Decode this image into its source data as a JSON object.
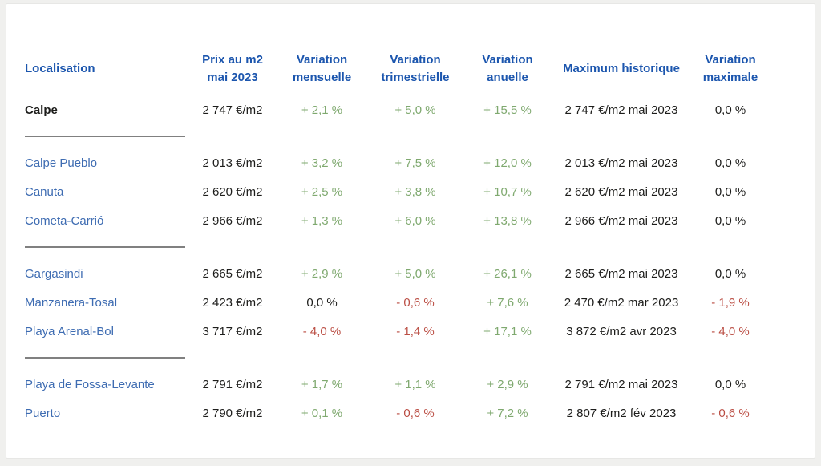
{
  "page": {
    "background": "#f0f0ee",
    "card_background": "#ffffff"
  },
  "colors": {
    "header_blue": "#1c56ae",
    "link_blue": "#3e6cb2",
    "positive_green": "#7fa96f",
    "negative_red": "#bb4f45",
    "neutral_text": "#1d1d1b",
    "divider_gray": "#808080"
  },
  "table": {
    "headers": [
      {
        "line1": "Localisation",
        "line2": ""
      },
      {
        "line1": "Prix au m2",
        "line2": "mai 2023"
      },
      {
        "line1": "Variation",
        "line2": "mensuelle"
      },
      {
        "line1": "Variation",
        "line2": "trimestrielle"
      },
      {
        "line1": "Variation",
        "line2": "anuelle"
      },
      {
        "line1": "Maximum historique",
        "line2": ""
      },
      {
        "line1": "Variation",
        "line2": "maximale"
      }
    ],
    "rows": [
      {
        "locality": "Calpe",
        "style": "bold",
        "price": "2 747 €/m2",
        "monthly": {
          "text": "+ 2,1 %",
          "trend": "positive"
        },
        "quarterly": {
          "text": "+ 5,0 %",
          "trend": "positive"
        },
        "yearly": {
          "text": "+ 15,5 %",
          "trend": "positive"
        },
        "max": "2 747 €/m2 mai 2023",
        "max_variation": {
          "text": "0,0 %",
          "trend": "neutral"
        },
        "divider_after": true
      },
      {
        "locality": "Calpe Pueblo",
        "style": "link",
        "price": "2 013 €/m2",
        "monthly": {
          "text": "+ 3,2 %",
          "trend": "positive"
        },
        "quarterly": {
          "text": "+ 7,5 %",
          "trend": "positive"
        },
        "yearly": {
          "text": "+ 12,0 %",
          "trend": "positive"
        },
        "max": "2 013 €/m2 mai 2023",
        "max_variation": {
          "text": "0,0 %",
          "trend": "neutral"
        },
        "divider_after": false
      },
      {
        "locality": "Canuta",
        "style": "link",
        "price": "2 620 €/m2",
        "monthly": {
          "text": "+ 2,5 %",
          "trend": "positive"
        },
        "quarterly": {
          "text": "+ 3,8 %",
          "trend": "positive"
        },
        "yearly": {
          "text": "+ 10,7 %",
          "trend": "positive"
        },
        "max": "2 620 €/m2 mai 2023",
        "max_variation": {
          "text": "0,0 %",
          "trend": "neutral"
        },
        "divider_after": false
      },
      {
        "locality": "Cometa-Carrió",
        "style": "link",
        "price": "2 966 €/m2",
        "monthly": {
          "text": "+ 1,3 %",
          "trend": "positive"
        },
        "quarterly": {
          "text": "+ 6,0 %",
          "trend": "positive"
        },
        "yearly": {
          "text": "+ 13,8 %",
          "trend": "positive"
        },
        "max": "2 966 €/m2 mai 2023",
        "max_variation": {
          "text": "0,0 %",
          "trend": "neutral"
        },
        "divider_after": true
      },
      {
        "locality": "Gargasindi",
        "style": "link",
        "price": "2 665 €/m2",
        "monthly": {
          "text": "+ 2,9 %",
          "trend": "positive"
        },
        "quarterly": {
          "text": "+ 5,0 %",
          "trend": "positive"
        },
        "yearly": {
          "text": "+ 26,1 %",
          "trend": "positive"
        },
        "max": "2 665 €/m2 mai 2023",
        "max_variation": {
          "text": "0,0 %",
          "trend": "neutral"
        },
        "divider_after": false
      },
      {
        "locality": "Manzanera-Tosal",
        "style": "link",
        "price": "2 423 €/m2",
        "monthly": {
          "text": "0,0 %",
          "trend": "neutral"
        },
        "quarterly": {
          "text": "- 0,6 %",
          "trend": "negative"
        },
        "yearly": {
          "text": "+ 7,6 %",
          "trend": "positive"
        },
        "max": "2 470 €/m2 mar 2023",
        "max_variation": {
          "text": "- 1,9 %",
          "trend": "negative"
        },
        "divider_after": false
      },
      {
        "locality": "Playa Arenal-Bol",
        "style": "link",
        "price": "3 717 €/m2",
        "monthly": {
          "text": "- 4,0 %",
          "trend": "negative"
        },
        "quarterly": {
          "text": "- 1,4 %",
          "trend": "negative"
        },
        "yearly": {
          "text": "+ 17,1 %",
          "trend": "positive"
        },
        "max": "3 872 €/m2 avr 2023",
        "max_variation": {
          "text": "- 4,0 %",
          "trend": "negative"
        },
        "divider_after": true
      },
      {
        "locality": "Playa de Fossa-Levante",
        "style": "link",
        "price": "2 791 €/m2",
        "monthly": {
          "text": "+ 1,7 %",
          "trend": "positive"
        },
        "quarterly": {
          "text": "+ 1,1 %",
          "trend": "positive"
        },
        "yearly": {
          "text": "+ 2,9 %",
          "trend": "positive"
        },
        "max": "2 791 €/m2 mai 2023",
        "max_variation": {
          "text": "0,0 %",
          "trend": "neutral"
        },
        "divider_after": false
      },
      {
        "locality": "Puerto",
        "style": "link",
        "price": "2 790 €/m2",
        "monthly": {
          "text": "+ 0,1 %",
          "trend": "positive"
        },
        "quarterly": {
          "text": "- 0,6 %",
          "trend": "negative"
        },
        "yearly": {
          "text": "+ 7,2 %",
          "trend": "positive"
        },
        "max": "2 807 €/m2 fév 2023",
        "max_variation": {
          "text": "- 0,6 %",
          "trend": "negative"
        },
        "divider_after": false
      }
    ]
  }
}
